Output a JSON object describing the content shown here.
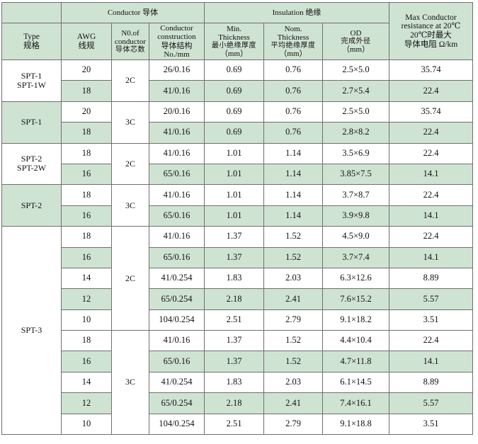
{
  "header": {
    "conductor_group": "Conductor 导体",
    "insulation_group": "Insulation 绝缘",
    "max_resistance": [
      "Max Conductor",
      "resistance at 20℃",
      "20℃时最大",
      "导体电阻 Ω/km"
    ],
    "type": [
      "Type",
      "规格"
    ],
    "awg": [
      "AWG",
      "线规"
    ],
    "cores": [
      "N0.of",
      "conductor",
      "导体芯数"
    ],
    "construction": [
      "Conductor",
      "construction",
      "导体结构",
      "No./mm"
    ],
    "min_thickness": [
      "Min.",
      "Thickness",
      "最小绝缘厚度",
      "（mm）"
    ],
    "nom_thickness": [
      "Nom.",
      "Thickness",
      "平均绝缘厚度",
      "（mm）"
    ],
    "od": [
      "OD",
      "完成外径",
      "（mm）"
    ]
  },
  "groups": [
    {
      "type": [
        "SPT-1",
        "SPT-1W"
      ],
      "shade": "white",
      "cores": [
        {
          "label": "2C",
          "rows": [
            {
              "awg": "20",
              "construction": "26/0.16",
              "min": "0.69",
              "nom": "0.76",
              "od": "2.5×5.0",
              "res": "35.74"
            },
            {
              "awg": "18",
              "construction": "41/0.16",
              "min": "0.69",
              "nom": "0.76",
              "od": "2.7×5.4",
              "res": "22.4"
            }
          ]
        }
      ]
    },
    {
      "type": [
        "SPT-1"
      ],
      "shade": "green",
      "cores": [
        {
          "label": "3C",
          "rows": [
            {
              "awg": "20",
              "construction": "20/0.16",
              "min": "0.69",
              "nom": "0.76",
              "od": "2.5×5.0",
              "res": "35.74"
            },
            {
              "awg": "18",
              "construction": "41/0.16",
              "min": "0.69",
              "nom": "0.76",
              "od": "2.8×8.2",
              "res": "22.4"
            }
          ]
        }
      ]
    },
    {
      "type": [
        "SPT-2",
        "SPT-2W"
      ],
      "shade": "white",
      "cores": [
        {
          "label": "2C",
          "rows": [
            {
              "awg": "18",
              "construction": "41/0.16",
              "min": "1.01",
              "nom": "1.14",
              "od": "3.5×6.9",
              "res": "22.4"
            },
            {
              "awg": "16",
              "construction": "65/0.16",
              "min": "1.01",
              "nom": "1.14",
              "od": "3.85×7.5",
              "res": "14.1"
            }
          ]
        }
      ]
    },
    {
      "type": [
        "SPT-2"
      ],
      "shade": "green",
      "cores": [
        {
          "label": "3C",
          "rows": [
            {
              "awg": "18",
              "construction": "41/0.16",
              "min": "1.01",
              "nom": "1.14",
              "od": "3.7×8.7",
              "res": "22.4"
            },
            {
              "awg": "16",
              "construction": "65/0.16",
              "min": "1.01",
              "nom": "1.14",
              "od": "3.9×9.8",
              "res": "14.1"
            }
          ]
        }
      ]
    },
    {
      "type": [
        "SPT-3"
      ],
      "shade": "white",
      "cores": [
        {
          "label": "2C",
          "rows": [
            {
              "awg": "18",
              "construction": "41/0.16",
              "min": "1.37",
              "nom": "1.52",
              "od": "4.5×9.0",
              "res": "22.4"
            },
            {
              "awg": "16",
              "construction": "65/0.16",
              "min": "1.37",
              "nom": "1.52",
              "od": "3.7×7.4",
              "res": "14.1"
            },
            {
              "awg": "14",
              "construction": "41/0.254",
              "min": "1.83",
              "nom": "2.03",
              "od": "6.3×12.6",
              "res": "8.89"
            },
            {
              "awg": "12",
              "construction": "65/0.254",
              "min": "2.18",
              "nom": "2.41",
              "od": "7.6×15.2",
              "res": "5.57"
            },
            {
              "awg": "10",
              "construction": "104/0.254",
              "min": "2.51",
              "nom": "2.79",
              "od": "9.1×18.2",
              "res": "3.51"
            }
          ]
        },
        {
          "label": "3C",
          "rows": [
            {
              "awg": "18",
              "construction": "41/0.16",
              "min": "1.37",
              "nom": "1.52",
              "od": "4.4×10.4",
              "res": "22.4"
            },
            {
              "awg": "16",
              "construction": "65/0.16",
              "min": "1.37",
              "nom": "1.52",
              "od": "4.7×11.8",
              "res": "14.1"
            },
            {
              "awg": "14",
              "construction": "41/0.254",
              "min": "1.83",
              "nom": "2.03",
              "od": "6.1×14.5",
              "res": "8.89"
            },
            {
              "awg": "12",
              "construction": "65/0.254",
              "min": "2.18",
              "nom": "2.41",
              "od": "7.4×16.1",
              "res": "5.57"
            },
            {
              "awg": "10",
              "construction": "104/0.254",
              "min": "2.51",
              "nom": "2.79",
              "od": "9.1×18.8",
              "res": "3.51"
            }
          ]
        }
      ]
    }
  ],
  "colors": {
    "header_green": "#cfe3d2",
    "border": "#6f6f6f"
  }
}
